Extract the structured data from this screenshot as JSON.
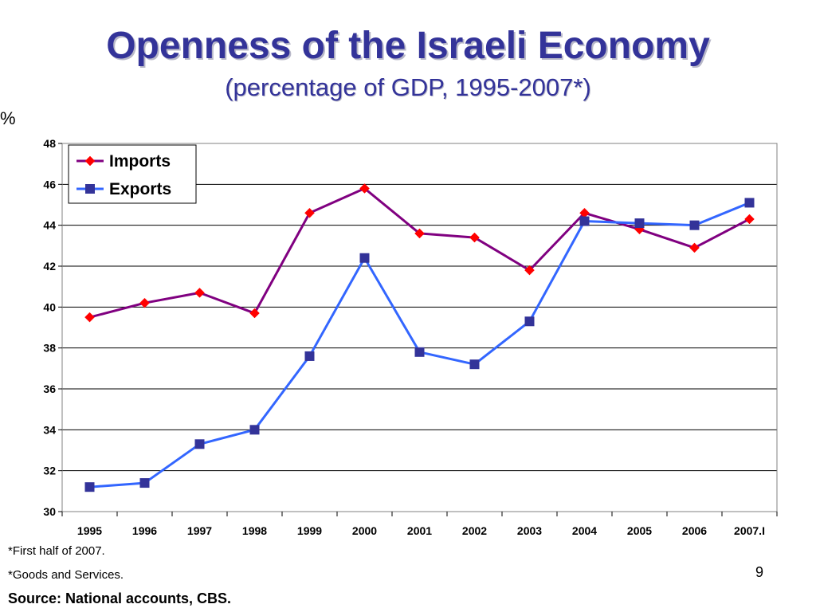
{
  "slide": {
    "title": "Openness of the Israeli Economy",
    "subtitle": "(percentage of GDP, 1995-2007*)",
    "unit": "%",
    "note1": "*First half of 2007.",
    "note2": "*Goods and Services.",
    "source": "Source: National accounts, CBS.",
    "page_number": "9"
  },
  "colors": {
    "title": "#333399",
    "imports_line": "#800080",
    "imports_marker": "#ff0000",
    "exports_line": "#3366ff",
    "exports_marker": "#333399",
    "grid": "#000000"
  },
  "chart_data": {
    "type": "line",
    "categories": [
      "1995",
      "1996",
      "1997",
      "1998",
      "1999",
      "2000",
      "2001",
      "2002",
      "2003",
      "2004",
      "2005",
      "2006",
      "2007.I"
    ],
    "series": [
      {
        "name": "Imports",
        "marker": "diamond",
        "values": [
          39.5,
          40.2,
          40.7,
          39.7,
          44.6,
          45.8,
          43.6,
          43.4,
          41.8,
          44.6,
          43.8,
          42.9,
          44.3
        ]
      },
      {
        "name": "Exports",
        "marker": "square",
        "values": [
          31.2,
          31.4,
          33.3,
          34.0,
          37.6,
          42.4,
          37.8,
          37.2,
          39.3,
          44.2,
          44.1,
          44.0,
          45.1
        ]
      }
    ],
    "ylim": [
      30,
      48
    ],
    "yticks": [
      30,
      32,
      34,
      36,
      38,
      40,
      42,
      44,
      46,
      48
    ],
    "grid": true,
    "legend_position": "top-left"
  }
}
